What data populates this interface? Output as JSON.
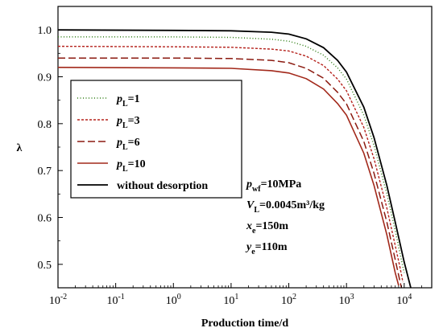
{
  "chart_data": {
    "type": "line",
    "title": "",
    "xlabel": "Production time/d",
    "ylabel": "λ",
    "xscale": "log",
    "xlim": [
      0.01,
      30000
    ],
    "ylim": [
      0.45,
      1.05
    ],
    "x_ticks": [
      {
        "value": 0.01,
        "base": "10",
        "exp": "-2"
      },
      {
        "value": 0.1,
        "base": "10",
        "exp": "-1"
      },
      {
        "value": 1,
        "base": "10",
        "exp": "0"
      },
      {
        "value": 10,
        "base": "10",
        "exp": "1"
      },
      {
        "value": 100,
        "base": "10",
        "exp": "2"
      },
      {
        "value": 1000,
        "base": "10",
        "exp": "3"
      },
      {
        "value": 10000,
        "base": "10",
        "exp": "4"
      }
    ],
    "y_ticks": [
      "0.5",
      "0.6",
      "0.7",
      "0.8",
      "0.9",
      "1.0"
    ],
    "grid": false,
    "legend_position": "left",
    "series": [
      {
        "legend_main": "p",
        "legend_sub": "L",
        "legend_rest": "=1",
        "color": "#2e7d14",
        "dash": "1,2.5",
        "width": 1.5,
        "x": [
          0.01,
          1,
          10,
          50,
          100,
          200,
          400,
          700,
          1000,
          2000,
          3000,
          5000,
          7000,
          9000,
          10000
        ],
        "y": [
          0.985,
          0.985,
          0.984,
          0.98,
          0.976,
          0.965,
          0.946,
          0.919,
          0.895,
          0.818,
          0.753,
          0.65,
          0.572,
          0.508,
          0.482
        ]
      },
      {
        "legend_main": "p",
        "legend_sub": "L",
        "legend_rest": "=3",
        "color": "#b5221c",
        "dash": "3,2",
        "width": 1.4,
        "x": [
          0.01,
          1,
          10,
          50,
          100,
          200,
          400,
          700,
          1000,
          2000,
          3000,
          5000,
          7000,
          8500,
          9500
        ],
        "y": [
          0.965,
          0.964,
          0.963,
          0.959,
          0.955,
          0.944,
          0.924,
          0.895,
          0.87,
          0.792,
          0.725,
          0.62,
          0.54,
          0.492,
          0.462
        ]
      },
      {
        "legend_main": "p",
        "legend_sub": "L",
        "legend_rest": "=6",
        "color": "#8b1a10",
        "dash": "9,4",
        "width": 1.5,
        "x": [
          0.01,
          1,
          10,
          50,
          100,
          200,
          400,
          700,
          1000,
          2000,
          3000,
          5000,
          7000,
          8500,
          9000
        ],
        "y": [
          0.94,
          0.94,
          0.939,
          0.935,
          0.93,
          0.918,
          0.897,
          0.867,
          0.842,
          0.762,
          0.694,
          0.59,
          0.51,
          0.462,
          0.45
        ]
      },
      {
        "legend_main": "p",
        "legend_sub": "L",
        "legend_rest": "=10",
        "color": "#a2281a",
        "dash": "",
        "width": 1.6,
        "x": [
          0.01,
          1,
          10,
          50,
          100,
          200,
          400,
          700,
          1000,
          2000,
          3000,
          5000,
          7000,
          8000
        ],
        "y": [
          0.92,
          0.919,
          0.918,
          0.913,
          0.908,
          0.896,
          0.874,
          0.843,
          0.818,
          0.737,
          0.668,
          0.563,
          0.482,
          0.455
        ]
      },
      {
        "legend_main": "without desorption",
        "legend_sub": "",
        "legend_rest": "",
        "color": "#000000",
        "dash": "",
        "width": 1.8,
        "x": [
          0.01,
          1,
          10,
          50,
          100,
          200,
          400,
          700,
          1000,
          2000,
          3000,
          5000,
          7000,
          10000,
          13000
        ],
        "y": [
          1.0,
          0.999,
          0.998,
          0.995,
          0.991,
          0.981,
          0.962,
          0.935,
          0.91,
          0.835,
          0.77,
          0.668,
          0.59,
          0.505,
          0.45
        ]
      }
    ],
    "annotations": [
      {
        "main": "p",
        "sub": "wf",
        "rest": "=10MPa"
      },
      {
        "main": "V",
        "sub": "L",
        "rest": "=0.0045m³/kg"
      },
      {
        "main": "x",
        "sub": "e",
        "rest": "=150m"
      },
      {
        "main": "y",
        "sub": "e",
        "rest": "=110m"
      }
    ]
  }
}
